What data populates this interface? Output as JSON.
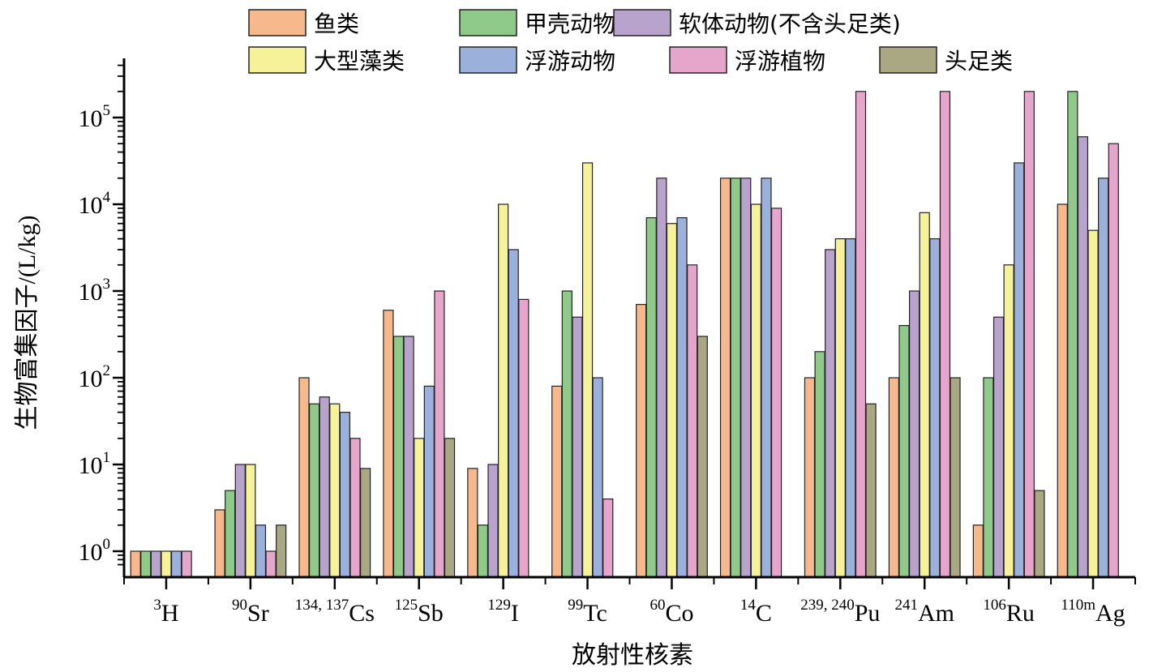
{
  "chart_data": {
    "type": "bar",
    "xlabel": "放射性核素",
    "ylabel": "生物富集因子/(L/kg)",
    "yscale": "log",
    "ylim": [
      0.7,
      400000
    ],
    "grid": false,
    "legend_position": "top",
    "categories": [
      {
        "label": "H",
        "sup": "3"
      },
      {
        "label": "Sr",
        "sup": "90"
      },
      {
        "label": "Cs",
        "sup": "134, 137"
      },
      {
        "label": "Sb",
        "sup": "125"
      },
      {
        "label": "I",
        "sup": "129"
      },
      {
        "label": "Tc",
        "sup": "99"
      },
      {
        "label": "Co",
        "sup": "60"
      },
      {
        "label": "C",
        "sup": "14"
      },
      {
        "label": "Pu",
        "sup": "239, 240"
      },
      {
        "label": "Am",
        "sup": "241"
      },
      {
        "label": "Ru",
        "sup": "106"
      },
      {
        "label": "Ag",
        "sup": "110m"
      }
    ],
    "y_ticks": [
      {
        "base": "10",
        "exp": "0"
      },
      {
        "base": "10",
        "exp": "1"
      },
      {
        "base": "10",
        "exp": "2"
      },
      {
        "base": "10",
        "exp": "3"
      },
      {
        "base": "10",
        "exp": "4"
      },
      {
        "base": "10",
        "exp": "5"
      }
    ],
    "series": [
      {
        "name": "鱼类",
        "color": "#f7b98b",
        "values": [
          1,
          3,
          100,
          600,
          9,
          80,
          700,
          20000,
          100,
          100,
          2,
          10000
        ]
      },
      {
        "name": "甲壳动物",
        "color": "#8fca8a",
        "values": [
          1,
          5,
          50,
          300,
          2,
          1000,
          7000,
          20000,
          200,
          400,
          100,
          200000
        ]
      },
      {
        "name": "软体动物(不含头足类)",
        "color": "#b8a3cc",
        "values": [
          1,
          10,
          60,
          300,
          10,
          500,
          20000,
          20000,
          3000,
          1000,
          500,
          60000
        ]
      },
      {
        "name": "大型藻类",
        "color": "#f6f29a",
        "values": [
          1,
          10,
          50,
          20,
          10000,
          30000,
          6000,
          10000,
          4000,
          8000,
          2000,
          5000
        ]
      },
      {
        "name": "浮游动物",
        "color": "#9bb0da",
        "values": [
          1,
          2,
          40,
          80,
          3000,
          100,
          7000,
          20000,
          4000,
          4000,
          30000,
          20000
        ]
      },
      {
        "name": "浮游植物",
        "color": "#e6a6cb",
        "values": [
          1,
          1,
          20,
          1000,
          800,
          4,
          2000,
          9000,
          200000,
          200000,
          200000,
          50000
        ]
      },
      {
        "name": "头足类",
        "color": "#a9a882",
        "values": [
          null,
          2,
          9,
          20,
          null,
          null,
          300,
          null,
          50,
          100,
          5,
          null
        ]
      }
    ]
  }
}
